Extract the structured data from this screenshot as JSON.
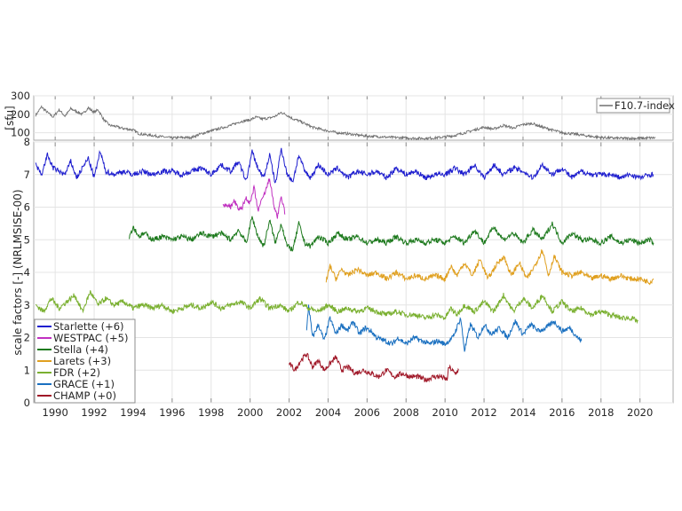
{
  "chart_data": [
    {
      "panel": "top",
      "type": "line",
      "title": "",
      "xlabel": "",
      "ylabel": "[sfu]",
      "ylim": [
        60,
        300
      ],
      "yticks": [
        100,
        200,
        300
      ],
      "xlim": [
        1988.9,
        2021.7
      ],
      "grid": true,
      "legend_position": "upper right",
      "series": [
        {
          "name": "F10.7-index",
          "color": "#707070",
          "x": [
            1989.0,
            1989.3,
            1989.6,
            1989.9,
            1990.2,
            1990.5,
            1990.8,
            1991.1,
            1991.4,
            1991.7,
            1992.0,
            1992.2,
            1992.5,
            1992.8,
            1993.1,
            1993.4,
            1993.7,
            1994.0,
            1994.3,
            1994.6,
            1995.0,
            1995.5,
            1996.0,
            1996.5,
            1997.0,
            1997.5,
            1998.0,
            1998.5,
            1999.0,
            1999.5,
            2000.0,
            2000.3,
            2000.6,
            2001.0,
            2001.3,
            2001.6,
            2001.9,
            2002.2,
            2002.5,
            2002.8,
            2003.2,
            2003.6,
            2004.0,
            2004.5,
            2005.0,
            2005.5,
            2006.0,
            2006.5,
            2007.0,
            2007.5,
            2008.0,
            2008.5,
            2009.0,
            2009.5,
            2010.0,
            2010.5,
            2011.0,
            2011.5,
            2012.0,
            2012.5,
            2013.0,
            2013.5,
            2014.0,
            2014.5,
            2015.0,
            2015.5,
            2016.0,
            2016.5,
            2017.0,
            2017.5,
            2018.0,
            2018.5,
            2019.0,
            2019.5,
            2020.0,
            2020.5,
            2020.8
          ],
          "values": [
            195,
            240,
            210,
            185,
            225,
            190,
            230,
            215,
            200,
            235,
            210,
            225,
            170,
            140,
            135,
            125,
            120,
            115,
            95,
            90,
            85,
            78,
            72,
            74,
            75,
            95,
            110,
            125,
            140,
            160,
            170,
            185,
            175,
            180,
            190,
            210,
            195,
            175,
            165,
            150,
            130,
            120,
            110,
            100,
            95,
            88,
            82,
            80,
            76,
            74,
            72,
            70,
            70,
            72,
            78,
            85,
            100,
            115,
            130,
            120,
            140,
            125,
            145,
            150,
            130,
            115,
            100,
            95,
            88,
            80,
            75,
            72,
            70,
            70,
            70,
            72,
            73
          ]
        }
      ]
    },
    {
      "panel": "bottom",
      "type": "line",
      "title": "",
      "xlabel": "",
      "ylabel": "scale factors [-] (NRLMSISE-00)",
      "ylim": [
        0,
        8
      ],
      "yticks": [
        0,
        1,
        2,
        3,
        4,
        5,
        6,
        7,
        8
      ],
      "xlim": [
        1988.9,
        2021.7
      ],
      "xticks": [
        1990,
        1992,
        1994,
        1996,
        1998,
        2000,
        2002,
        2004,
        2006,
        2008,
        2010,
        2012,
        2014,
        2016,
        2018,
        2020
      ],
      "grid": true,
      "legend_position": "lower left",
      "series": [
        {
          "name": "Starlette (+6)",
          "color": "#1f1fcf",
          "x": [
            1989.0,
            1989.3,
            1989.6,
            1989.9,
            1990.2,
            1990.5,
            1990.8,
            1991.1,
            1991.4,
            1991.7,
            1992.0,
            1992.3,
            1992.6,
            1993.0,
            1993.5,
            1994.0,
            1994.5,
            1995.0,
            1995.5,
            1996.0,
            1996.5,
            1997.0,
            1997.5,
            1998.0,
            1998.5,
            1999.0,
            1999.4,
            1999.8,
            2000.1,
            2000.4,
            2000.7,
            2001.0,
            2001.3,
            2001.6,
            2001.9,
            2002.2,
            2002.5,
            2002.8,
            2003.1,
            2003.5,
            2004.0,
            2004.5,
            2005.0,
            2005.5,
            2006.0,
            2006.5,
            2007.0,
            2007.5,
            2008.0,
            2008.5,
            2009.0,
            2009.5,
            2010.0,
            2010.5,
            2011.0,
            2011.5,
            2012.0,
            2012.5,
            2013.0,
            2013.5,
            2014.0,
            2014.5,
            2015.0,
            2015.5,
            2016.0,
            2016.5,
            2017.0,
            2017.5,
            2018.0,
            2018.5,
            2019.0,
            2019.5,
            2020.0,
            2020.5,
            2020.7
          ],
          "values": [
            7.3,
            7.0,
            7.6,
            7.2,
            7.1,
            7.0,
            7.4,
            6.9,
            7.2,
            7.5,
            6.9,
            7.7,
            7.1,
            7.0,
            7.1,
            7.0,
            7.1,
            7.0,
            7.1,
            7.1,
            7.0,
            7.1,
            7.2,
            7.0,
            7.3,
            7.1,
            7.4,
            6.8,
            7.7,
            7.2,
            6.9,
            7.6,
            6.7,
            7.8,
            7.0,
            6.8,
            7.6,
            7.1,
            6.9,
            7.3,
            7.0,
            7.2,
            6.9,
            7.1,
            7.0,
            7.1,
            6.9,
            7.2,
            7.0,
            7.1,
            6.9,
            7.0,
            7.0,
            7.2,
            7.0,
            7.3,
            6.9,
            7.3,
            7.0,
            7.2,
            7.1,
            6.9,
            7.3,
            7.0,
            7.2,
            6.9,
            7.1,
            7.0,
            7.0,
            7.0,
            6.9,
            7.0,
            6.9,
            7.0,
            7.0
          ]
        },
        {
          "name": "WESTPAC (+5)",
          "color": "#c030c0",
          "x": [
            1998.6,
            1998.8,
            1999.0,
            1999.2,
            1999.4,
            1999.6,
            1999.8,
            2000.0,
            2000.2,
            2000.4,
            2000.6,
            2000.8,
            2001.0,
            2001.2,
            2001.4,
            2001.6,
            2001.8
          ],
          "values": [
            6.0,
            6.1,
            6.0,
            6.2,
            5.9,
            6.0,
            6.3,
            6.1,
            6.6,
            5.9,
            6.2,
            6.5,
            6.9,
            6.1,
            5.7,
            6.3,
            5.8
          ]
        },
        {
          "name": "Stella (+4)",
          "color": "#1e7a1e",
          "x": [
            1993.8,
            1994.0,
            1994.3,
            1994.6,
            1995.0,
            1995.5,
            1996.0,
            1996.5,
            1997.0,
            1997.5,
            1998.0,
            1998.5,
            1999.0,
            1999.4,
            1999.8,
            2000.1,
            2000.4,
            2000.7,
            2001.0,
            2001.3,
            2001.6,
            2001.9,
            2002.2,
            2002.5,
            2002.8,
            2003.1,
            2003.5,
            2004.0,
            2004.5,
            2005.0,
            2005.5,
            2006.0,
            2006.5,
            2007.0,
            2007.5,
            2008.0,
            2008.5,
            2009.0,
            2009.5,
            2010.0,
            2010.5,
            2011.0,
            2011.5,
            2012.0,
            2012.5,
            2013.0,
            2013.5,
            2014.0,
            2014.5,
            2015.0,
            2015.5,
            2016.0,
            2016.5,
            2017.0,
            2017.5,
            2018.0,
            2018.5,
            2019.0,
            2019.5,
            2020.0,
            2020.5,
            2020.7
          ],
          "values": [
            5.1,
            5.4,
            5.1,
            5.2,
            5.0,
            5.1,
            5.0,
            5.1,
            5.0,
            5.2,
            5.1,
            5.2,
            5.0,
            5.3,
            4.9,
            5.7,
            5.1,
            4.8,
            5.6,
            4.9,
            5.5,
            4.8,
            4.7,
            5.5,
            4.9,
            4.8,
            5.1,
            4.9,
            5.2,
            5.0,
            5.1,
            4.9,
            5.0,
            4.9,
            5.1,
            4.9,
            5.0,
            4.9,
            5.0,
            4.9,
            5.1,
            4.9,
            5.3,
            4.9,
            5.4,
            5.0,
            5.2,
            4.9,
            5.3,
            5.0,
            5.5,
            4.9,
            5.2,
            5.0,
            5.0,
            4.9,
            5.1,
            4.9,
            5.0,
            4.9,
            5.0,
            4.9
          ]
        },
        {
          "name": "Larets (+3)",
          "color": "#e0a020",
          "x": [
            2003.9,
            2004.1,
            2004.4,
            2004.7,
            2005.0,
            2005.5,
            2006.0,
            2006.5,
            2007.0,
            2007.5,
            2008.0,
            2008.5,
            2009.0,
            2009.5,
            2010.0,
            2010.3,
            2010.6,
            2011.0,
            2011.4,
            2011.8,
            2012.2,
            2012.6,
            2013.0,
            2013.4,
            2013.8,
            2014.2,
            2014.6,
            2015.0,
            2015.3,
            2015.6,
            2016.0,
            2016.5,
            2017.0,
            2017.5,
            2018.0,
            2018.5,
            2019.0,
            2019.5,
            2020.0,
            2020.5,
            2020.7
          ],
          "values": [
            3.7,
            4.2,
            3.8,
            4.1,
            3.9,
            4.1,
            3.9,
            4.0,
            3.8,
            4.0,
            3.8,
            3.9,
            3.8,
            3.9,
            3.8,
            4.2,
            3.9,
            4.3,
            3.9,
            4.4,
            3.8,
            4.2,
            4.5,
            3.9,
            4.3,
            3.8,
            4.2,
            4.7,
            3.9,
            4.5,
            4.0,
            3.9,
            4.0,
            3.8,
            3.9,
            3.8,
            3.9,
            3.8,
            3.8,
            3.7,
            3.8
          ]
        },
        {
          "name": "FDR (+2)",
          "color": "#7ab030",
          "x": [
            1989.0,
            1989.4,
            1989.8,
            1990.2,
            1990.6,
            1991.0,
            1991.4,
            1991.8,
            1992.2,
            1992.6,
            1993.0,
            1993.5,
            1994.0,
            1994.5,
            1995.0,
            1995.5,
            1996.0,
            1996.5,
            1997.0,
            1997.5,
            1998.0,
            1998.5,
            1999.0,
            1999.5,
            2000.0,
            2000.5,
            2001.0,
            2001.5,
            2002.0,
            2002.5,
            2003.0,
            2003.5,
            2004.0,
            2004.5,
            2005.0,
            2005.5,
            2006.0,
            2006.5,
            2007.0,
            2007.5,
            2008.0,
            2008.5,
            2009.0,
            2009.5,
            2010.0,
            2010.3,
            2010.6,
            2011.0,
            2011.5,
            2012.0,
            2012.5,
            2013.0,
            2013.5,
            2014.0,
            2014.5,
            2015.0,
            2015.5,
            2016.0,
            2016.5,
            2017.0,
            2017.5,
            2018.0,
            2018.5,
            2019.0,
            2019.5,
            2019.9
          ],
          "values": [
            3.0,
            2.8,
            3.2,
            2.9,
            3.1,
            3.3,
            2.8,
            3.4,
            3.0,
            3.2,
            3.0,
            3.1,
            2.9,
            3.0,
            2.9,
            3.0,
            2.8,
            2.9,
            3.0,
            2.9,
            3.1,
            2.9,
            3.0,
            3.1,
            2.9,
            3.2,
            2.9,
            3.0,
            2.8,
            3.1,
            2.9,
            2.8,
            3.0,
            2.8,
            2.9,
            2.8,
            2.9,
            2.8,
            2.7,
            2.8,
            2.7,
            2.7,
            2.6,
            2.7,
            2.6,
            2.9,
            2.7,
            3.0,
            2.8,
            3.1,
            2.8,
            3.3,
            2.8,
            3.2,
            2.9,
            3.3,
            2.8,
            3.1,
            2.8,
            2.9,
            2.7,
            2.8,
            2.7,
            2.6,
            2.6,
            2.5
          ]
        },
        {
          "name": "GRACE (+1)",
          "color": "#1a70c0",
          "x": [
            2002.9,
            2003.0,
            2003.2,
            2003.5,
            2003.8,
            2004.1,
            2004.4,
            2004.7,
            2005.0,
            2005.3,
            2005.6,
            2005.9,
            2006.2,
            2006.5,
            2006.9,
            2007.3,
            2007.6,
            2008.0,
            2008.4,
            2008.8,
            2009.2,
            2009.6,
            2010.0,
            2010.4,
            2010.8,
            2011.0,
            2011.3,
            2011.7,
            2012.0,
            2012.4,
            2012.8,
            2013.2,
            2013.6,
            2014.0,
            2014.4,
            2014.8,
            2015.2,
            2015.6,
            2016.0,
            2016.4,
            2016.8,
            2017.0
          ],
          "values": [
            2.2,
            3.0,
            2.0,
            2.4,
            1.9,
            2.6,
            2.1,
            2.4,
            2.2,
            2.5,
            2.1,
            2.3,
            2.2,
            2.0,
            1.9,
            1.8,
            2.0,
            1.8,
            2.0,
            1.9,
            1.8,
            1.9,
            1.8,
            2.0,
            2.6,
            1.6,
            2.4,
            2.0,
            2.4,
            2.1,
            2.3,
            2.0,
            2.5,
            2.1,
            2.4,
            2.2,
            2.3,
            2.5,
            2.2,
            2.3,
            2.0,
            1.9
          ]
        },
        {
          "name": "CHAMP (+0)",
          "color": "#a01828",
          "x": [
            2002.0,
            2002.3,
            2002.6,
            2002.9,
            2003.2,
            2003.5,
            2003.8,
            2004.1,
            2004.4,
            2004.7,
            2005.0,
            2005.4,
            2005.8,
            2006.2,
            2006.6,
            2007.0,
            2007.4,
            2007.8,
            2008.2,
            2008.6,
            2009.0,
            2009.4,
            2009.8,
            2010.1,
            2010.2,
            2010.5,
            2010.7
          ],
          "values": [
            1.2,
            1.0,
            1.3,
            1.5,
            1.1,
            1.3,
            1.0,
            1.2,
            1.4,
            1.0,
            1.1,
            0.9,
            1.0,
            0.9,
            0.8,
            1.0,
            0.8,
            0.9,
            0.8,
            0.8,
            0.7,
            0.8,
            0.8,
            0.7,
            1.1,
            0.9,
            1.0
          ]
        }
      ]
    }
  ]
}
